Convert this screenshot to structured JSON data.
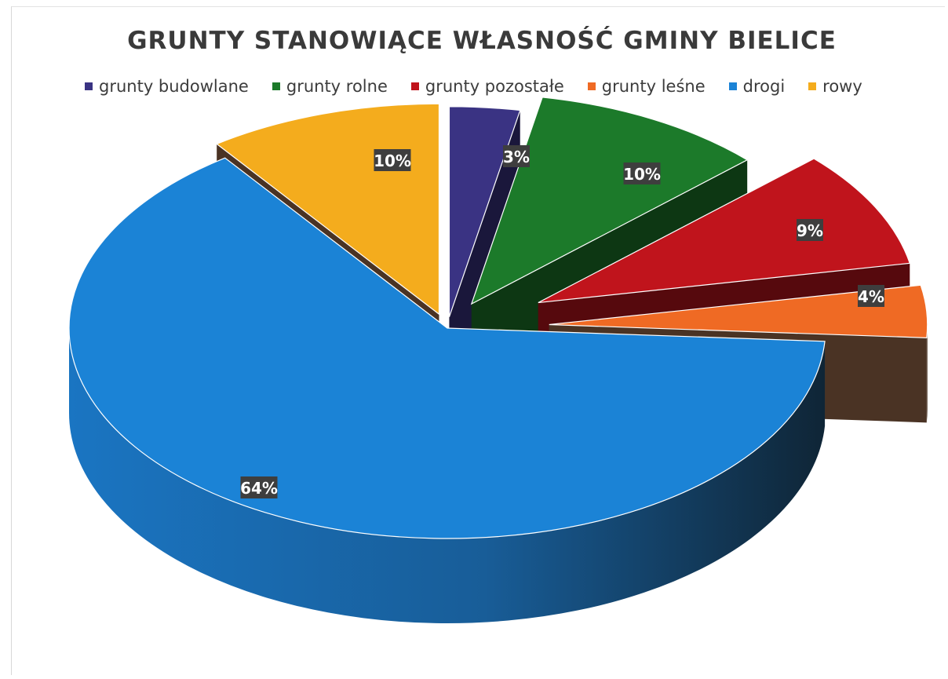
{
  "chart_data": {
    "type": "pie",
    "title": "GRUNTY STANOWIĄCE WŁASNOŚĆ GMINY BIELICE",
    "legend_position": "top",
    "categories": [
      "grunty budowlane",
      "grunty rolne",
      "grunty pozostałe",
      "grunty leśne",
      "drogi",
      "rowy"
    ],
    "values": [
      3,
      10,
      9,
      4,
      64,
      10
    ],
    "data_labels": [
      "3%",
      "10%",
      "9%",
      "4%",
      "64%",
      "10%"
    ],
    "colors": [
      "#3a3383",
      "#1c7a2a",
      "#c0141c",
      "#ef6a24",
      "#1b83d6",
      "#f4ac1d"
    ],
    "style": "3d-exploded"
  }
}
